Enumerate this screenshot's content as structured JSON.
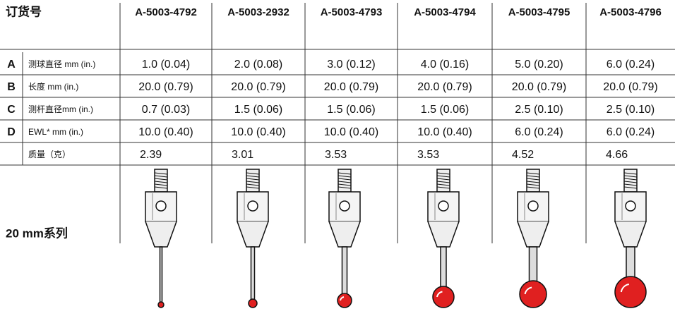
{
  "header": {
    "title": "订货号",
    "columns": [
      "A-5003-4792",
      "A-5003-2932",
      "A-5003-4793",
      "A-5003-4794",
      "A-5003-4795",
      "A-5003-4796"
    ]
  },
  "rows": [
    {
      "letter": "A",
      "label": "测球直径 mm (in.)",
      "values": [
        "1.0 (0.04)",
        "2.0 (0.08)",
        "3.0 (0.12)",
        "4.0 (0.16)",
        "5.0 (0.20)",
        "6.0 (0.24)"
      ]
    },
    {
      "letter": "B",
      "label": "长度 mm (in.)",
      "values": [
        "20.0 (0.79)",
        "20.0 (0.79)",
        "20.0 (0.79)",
        "20.0 (0.79)",
        "20.0 (0.79)",
        "20.0 (0.79)"
      ]
    },
    {
      "letter": "C",
      "label": "测杆直径mm (in.)",
      "values": [
        "0.7 (0.03)",
        "1.5 (0.06)",
        "1.5 (0.06)",
        "1.5 (0.06)",
        "2.5 (0.10)",
        "2.5 (0.10)"
      ]
    },
    {
      "letter": "D",
      "label": "EWL* mm (in.)",
      "values": [
        "10.0 (0.40)",
        "10.0 (0.40)",
        "10.0 (0.40)",
        "10.0 (0.40)",
        "6.0 (0.24)",
        "6.0 (0.24)"
      ]
    },
    {
      "label": "质量（克）",
      "values": [
        "2.39",
        "3.01",
        "3.53",
        "3.53",
        "4.52",
        "4.66"
      ]
    }
  ],
  "series_label": "20 mm系列"
}
